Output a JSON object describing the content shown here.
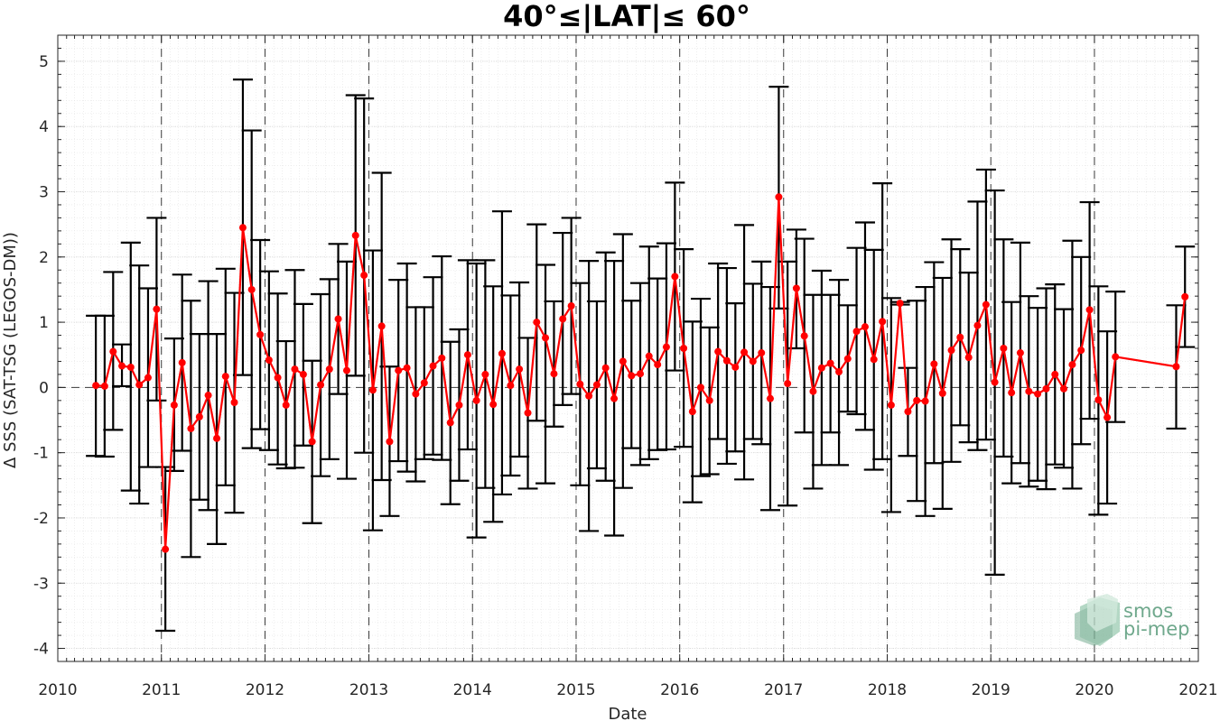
{
  "chart_data": {
    "type": "line",
    "title": "40°≤|LAT|≤ 60°",
    "xlabel": "Date",
    "ylabel": "Δ SSS (SAT-TSG (LEGOS-DM))",
    "xlim": [
      "2010-01-01",
      "2021-01-01"
    ],
    "ylim": [
      -4.2,
      5.4
    ],
    "yticks": [
      -4,
      -3,
      -2,
      -1,
      0,
      1,
      2,
      3,
      4,
      5
    ],
    "xticks": [
      "2010",
      "2011",
      "2012",
      "2013",
      "2014",
      "2015",
      "2016",
      "2017",
      "2018",
      "2019",
      "2020",
      "2021"
    ],
    "grid": true,
    "year_lines": [
      "2011-01-01",
      "2012-01-01",
      "2013-01-01",
      "2014-01-01",
      "2015-01-01",
      "2016-01-01",
      "2017-01-01",
      "2018-01-01",
      "2019-01-01",
      "2020-01-01"
    ],
    "zero_line": 0,
    "series_color": "#ff0000",
    "errorbar_color": "#000000",
    "points": [
      {
        "date": "2010-05-15",
        "mean": 0.03,
        "lo": -1.05,
        "hi": 1.1
      },
      {
        "date": "2010-06-15",
        "mean": 0.02,
        "lo": -1.06,
        "hi": 1.1
      },
      {
        "date": "2010-07-15",
        "mean": 0.55,
        "lo": -0.65,
        "hi": 1.77
      },
      {
        "date": "2010-08-15",
        "mean": 0.33,
        "lo": 0.02,
        "hi": 0.66
      },
      {
        "date": "2010-09-15",
        "mean": 0.31,
        "lo": -1.58,
        "hi": 2.22
      },
      {
        "date": "2010-10-15",
        "mean": 0.04,
        "lo": -1.78,
        "hi": 1.87
      },
      {
        "date": "2010-11-15",
        "mean": 0.15,
        "lo": -1.22,
        "hi": 1.52
      },
      {
        "date": "2010-12-15",
        "mean": 1.2,
        "lo": -0.2,
        "hi": 2.6
      },
      {
        "date": "2011-01-15",
        "mean": -2.48,
        "lo": -3.73,
        "hi": -1.22
      },
      {
        "date": "2011-02-15",
        "mean": -0.27,
        "lo": -1.28,
        "hi": 0.75
      },
      {
        "date": "2011-03-15",
        "mean": 0.38,
        "lo": -0.97,
        "hi": 1.73
      },
      {
        "date": "2011-04-15",
        "mean": -0.63,
        "lo": -2.6,
        "hi": 1.33
      },
      {
        "date": "2011-05-15",
        "mean": -0.45,
        "lo": -1.72,
        "hi": 0.82
      },
      {
        "date": "2011-06-15",
        "mean": -0.12,
        "lo": -1.88,
        "hi": 1.63
      },
      {
        "date": "2011-07-15",
        "mean": -0.78,
        "lo": -2.4,
        "hi": 0.82
      },
      {
        "date": "2011-08-15",
        "mean": 0.17,
        "lo": -1.5,
        "hi": 1.82
      },
      {
        "date": "2011-09-15",
        "mean": -0.23,
        "lo": -1.92,
        "hi": 1.45
      },
      {
        "date": "2011-10-15",
        "mean": 2.45,
        "lo": 0.19,
        "hi": 4.72
      },
      {
        "date": "2011-11-15",
        "mean": 1.5,
        "lo": -0.93,
        "hi": 3.94
      },
      {
        "date": "2011-12-15",
        "mean": 0.81,
        "lo": -0.64,
        "hi": 2.26
      },
      {
        "date": "2012-01-15",
        "mean": 0.42,
        "lo": -0.96,
        "hi": 1.78
      },
      {
        "date": "2012-02-15",
        "mean": 0.15,
        "lo": -1.18,
        "hi": 1.44
      },
      {
        "date": "2012-03-15",
        "mean": -0.27,
        "lo": -1.24,
        "hi": 0.71
      },
      {
        "date": "2012-04-15",
        "mean": 0.28,
        "lo": -1.23,
        "hi": 1.8
      },
      {
        "date": "2012-05-15",
        "mean": 0.2,
        "lo": -0.89,
        "hi": 1.28
      },
      {
        "date": "2012-06-15",
        "mean": -0.83,
        "lo": -2.08,
        "hi": 0.41
      },
      {
        "date": "2012-07-15",
        "mean": 0.04,
        "lo": -1.36,
        "hi": 1.43
      },
      {
        "date": "2012-08-15",
        "mean": 0.28,
        "lo": -1.1,
        "hi": 1.66
      },
      {
        "date": "2012-09-15",
        "mean": 1.05,
        "lo": -0.1,
        "hi": 2.2
      },
      {
        "date": "2012-10-15",
        "mean": 0.26,
        "lo": -1.4,
        "hi": 1.93
      },
      {
        "date": "2012-11-15",
        "mean": 2.33,
        "lo": 0.18,
        "hi": 4.48
      },
      {
        "date": "2012-12-15",
        "mean": 1.72,
        "lo": -1.0,
        "hi": 4.43
      },
      {
        "date": "2013-01-15",
        "mean": -0.04,
        "lo": -2.19,
        "hi": 2.1
      },
      {
        "date": "2013-02-15",
        "mean": 0.94,
        "lo": -1.42,
        "hi": 3.29
      },
      {
        "date": "2013-03-15",
        "mean": -0.83,
        "lo": -1.97,
        "hi": 0.32
      },
      {
        "date": "2013-04-15",
        "mean": 0.26,
        "lo": -1.13,
        "hi": 1.65
      },
      {
        "date": "2013-05-15",
        "mean": 0.3,
        "lo": -1.29,
        "hi": 1.9
      },
      {
        "date": "2013-06-15",
        "mean": -0.1,
        "lo": -1.44,
        "hi": 1.23
      },
      {
        "date": "2013-07-15",
        "mean": 0.07,
        "lo": -1.1,
        "hi": 1.23
      },
      {
        "date": "2013-08-15",
        "mean": 0.33,
        "lo": -1.03,
        "hi": 1.69
      },
      {
        "date": "2013-09-15",
        "mean": 0.45,
        "lo": -1.11,
        "hi": 2.01
      },
      {
        "date": "2013-10-15",
        "mean": -0.54,
        "lo": -1.79,
        "hi": 0.7
      },
      {
        "date": "2013-11-15",
        "mean": -0.27,
        "lo": -1.43,
        "hi": 0.89
      },
      {
        "date": "2013-12-15",
        "mean": 0.5,
        "lo": -0.95,
        "hi": 1.95
      },
      {
        "date": "2014-01-15",
        "mean": -0.2,
        "lo": -2.3,
        "hi": 1.9
      },
      {
        "date": "2014-02-15",
        "mean": 0.2,
        "lo": -1.54,
        "hi": 1.95
      },
      {
        "date": "2014-03-15",
        "mean": -0.26,
        "lo": -2.06,
        "hi": 1.55
      },
      {
        "date": "2014-04-15",
        "mean": 0.52,
        "lo": -1.64,
        "hi": 2.7
      },
      {
        "date": "2014-05-15",
        "mean": 0.03,
        "lo": -1.35,
        "hi": 1.41
      },
      {
        "date": "2014-06-15",
        "mean": 0.28,
        "lo": -1.06,
        "hi": 1.61
      },
      {
        "date": "2014-07-15",
        "mean": -0.39,
        "lo": -1.55,
        "hi": 0.76
      },
      {
        "date": "2014-08-15",
        "mean": 1.0,
        "lo": -0.51,
        "hi": 2.5
      },
      {
        "date": "2014-09-15",
        "mean": 0.76,
        "lo": -1.47,
        "hi": 1.88
      },
      {
        "date": "2014-10-15",
        "mean": 0.21,
        "lo": -0.6,
        "hi": 1.32
      },
      {
        "date": "2014-11-15",
        "mean": 1.05,
        "lo": -0.27,
        "hi": 2.37
      },
      {
        "date": "2014-12-15",
        "mean": 1.25,
        "lo": -0.1,
        "hi": 2.6
      },
      {
        "date": "2015-01-15",
        "mean": 0.05,
        "lo": -1.5,
        "hi": 1.6
      },
      {
        "date": "2015-02-15",
        "mean": -0.13,
        "lo": -2.2,
        "hi": 1.94
      },
      {
        "date": "2015-03-15",
        "mean": 0.04,
        "lo": -1.24,
        "hi": 1.32
      },
      {
        "date": "2015-04-15",
        "mean": 0.3,
        "lo": -1.43,
        "hi": 2.07
      },
      {
        "date": "2015-05-15",
        "mean": -0.17,
        "lo": -2.27,
        "hi": 1.94
      },
      {
        "date": "2015-06-15",
        "mean": 0.4,
        "lo": -1.54,
        "hi": 2.35
      },
      {
        "date": "2015-07-15",
        "mean": 0.18,
        "lo": -0.93,
        "hi": 1.33
      },
      {
        "date": "2015-08-15",
        "mean": 0.21,
        "lo": -1.19,
        "hi": 1.6
      },
      {
        "date": "2015-09-15",
        "mean": 0.48,
        "lo": -1.1,
        "hi": 2.16
      },
      {
        "date": "2015-10-15",
        "mean": 0.35,
        "lo": -0.96,
        "hi": 1.67
      },
      {
        "date": "2015-11-15",
        "mean": 0.62,
        "lo": -0.95,
        "hi": 2.21
      },
      {
        "date": "2015-12-15",
        "mean": 1.7,
        "lo": 0.26,
        "hi": 3.14
      },
      {
        "date": "2016-01-15",
        "mean": 0.6,
        "lo": -0.91,
        "hi": 2.12
      },
      {
        "date": "2016-02-15",
        "mean": -0.37,
        "lo": -1.76,
        "hi": 1.01
      },
      {
        "date": "2016-03-15",
        "mean": 0.0,
        "lo": -1.36,
        "hi": 1.36
      },
      {
        "date": "2016-04-15",
        "mean": -0.2,
        "lo": -1.33,
        "hi": 0.92
      },
      {
        "date": "2016-05-15",
        "mean": 0.55,
        "lo": -0.79,
        "hi": 1.9
      },
      {
        "date": "2016-06-15",
        "mean": 0.41,
        "lo": -1.17,
        "hi": 1.83
      },
      {
        "date": "2016-07-15",
        "mean": 0.31,
        "lo": -0.98,
        "hi": 1.29
      },
      {
        "date": "2016-08-15",
        "mean": 0.54,
        "lo": -1.41,
        "hi": 2.49
      },
      {
        "date": "2016-09-15",
        "mean": 0.4,
        "lo": -0.79,
        "hi": 1.59
      },
      {
        "date": "2016-10-15",
        "mean": 0.53,
        "lo": -0.87,
        "hi": 1.93
      },
      {
        "date": "2016-11-15",
        "mean": -0.17,
        "lo": -1.88,
        "hi": 1.54
      },
      {
        "date": "2016-12-15",
        "mean": 2.92,
        "lo": 1.21,
        "hi": 4.61
      },
      {
        "date": "2017-01-15",
        "mean": 0.06,
        "lo": -1.81,
        "hi": 1.93
      },
      {
        "date": "2017-02-15",
        "mean": 1.52,
        "lo": 0.6,
        "hi": 2.42
      },
      {
        "date": "2017-03-15",
        "mean": 0.79,
        "lo": -0.69,
        "hi": 2.28
      },
      {
        "date": "2017-04-15",
        "mean": -0.06,
        "lo": -1.55,
        "hi": 1.42
      },
      {
        "date": "2017-05-15",
        "mean": 0.3,
        "lo": -1.19,
        "hi": 1.79
      },
      {
        "date": "2017-06-15",
        "mean": 0.37,
        "lo": -0.69,
        "hi": 1.42
      },
      {
        "date": "2017-07-15",
        "mean": 0.24,
        "lo": -1.19,
        "hi": 1.65
      },
      {
        "date": "2017-08-15",
        "mean": 0.44,
        "lo": -0.37,
        "hi": 1.26
      },
      {
        "date": "2017-09-15",
        "mean": 0.86,
        "lo": -0.41,
        "hi": 2.14
      },
      {
        "date": "2017-10-15",
        "mean": 0.93,
        "lo": -0.65,
        "hi": 2.53
      },
      {
        "date": "2017-11-15",
        "mean": 0.43,
        "lo": -1.26,
        "hi": 2.11
      },
      {
        "date": "2017-12-15",
        "mean": 1.01,
        "lo": -1.1,
        "hi": 3.13
      },
      {
        "date": "2018-01-15",
        "mean": -0.27,
        "lo": -1.91,
        "hi": 1.37
      },
      {
        "date": "2018-02-15",
        "mean": 1.29,
        "lo": 1.27,
        "hi": 1.31
      },
      {
        "date": "2018-03-15",
        "mean": -0.37,
        "lo": -1.05,
        "hi": 0.3
      },
      {
        "date": "2018-04-15",
        "mean": -0.2,
        "lo": -1.74,
        "hi": 1.33
      },
      {
        "date": "2018-05-15",
        "mean": -0.21,
        "lo": -1.97,
        "hi": 1.54
      },
      {
        "date": "2018-06-15",
        "mean": 0.36,
        "lo": -1.16,
        "hi": 1.92
      },
      {
        "date": "2018-07-15",
        "mean": -0.09,
        "lo": -1.86,
        "hi": 1.68
      },
      {
        "date": "2018-08-15",
        "mean": 0.57,
        "lo": -1.14,
        "hi": 2.27
      },
      {
        "date": "2018-09-15",
        "mean": 0.77,
        "lo": -0.58,
        "hi": 2.12
      },
      {
        "date": "2018-10-15",
        "mean": 0.46,
        "lo": -0.84,
        "hi": 1.76
      },
      {
        "date": "2018-11-15",
        "mean": 0.95,
        "lo": -0.96,
        "hi": 2.85
      },
      {
        "date": "2018-12-15",
        "mean": 1.27,
        "lo": -0.8,
        "hi": 3.34
      },
      {
        "date": "2019-01-15",
        "mean": 0.08,
        "lo": -2.87,
        "hi": 3.02
      },
      {
        "date": "2019-02-15",
        "mean": 0.6,
        "lo": -1.06,
        "hi": 2.27
      },
      {
        "date": "2019-03-15",
        "mean": -0.08,
        "lo": -1.47,
        "hi": 1.31
      },
      {
        "date": "2019-04-15",
        "mean": 0.53,
        "lo": -1.16,
        "hi": 2.22
      },
      {
        "date": "2019-05-15",
        "mean": -0.06,
        "lo": -1.52,
        "hi": 1.4
      },
      {
        "date": "2019-06-15",
        "mean": -0.1,
        "lo": -1.43,
        "hi": 1.22
      },
      {
        "date": "2019-07-15",
        "mean": -0.02,
        "lo": -1.56,
        "hi": 1.52
      },
      {
        "date": "2019-08-15",
        "mean": 0.2,
        "lo": -1.18,
        "hi": 1.58
      },
      {
        "date": "2019-09-15",
        "mean": -0.02,
        "lo": -1.23,
        "hi": 1.2
      },
      {
        "date": "2019-10-15",
        "mean": 0.35,
        "lo": -1.55,
        "hi": 2.25
      },
      {
        "date": "2019-11-15",
        "mean": 0.57,
        "lo": -0.87,
        "hi": 2.0
      },
      {
        "date": "2019-12-15",
        "mean": 1.19,
        "lo": -0.48,
        "hi": 2.84
      },
      {
        "date": "2020-01-15",
        "mean": -0.19,
        "lo": -1.95,
        "hi": 1.55
      },
      {
        "date": "2020-02-15",
        "mean": -0.46,
        "lo": -1.78,
        "hi": 0.86
      },
      {
        "date": "2020-03-15",
        "mean": 0.47,
        "lo": -0.53,
        "hi": 1.47
      },
      {
        "date": "2020-10-15",
        "mean": 0.32,
        "lo": -0.63,
        "hi": 1.26
      },
      {
        "date": "2020-11-15",
        "mean": 1.39,
        "lo": 0.62,
        "hi": 2.16
      }
    ]
  },
  "logo": {
    "line1": "smos",
    "line2": "pi-mep",
    "color": "#6fa88c"
  }
}
